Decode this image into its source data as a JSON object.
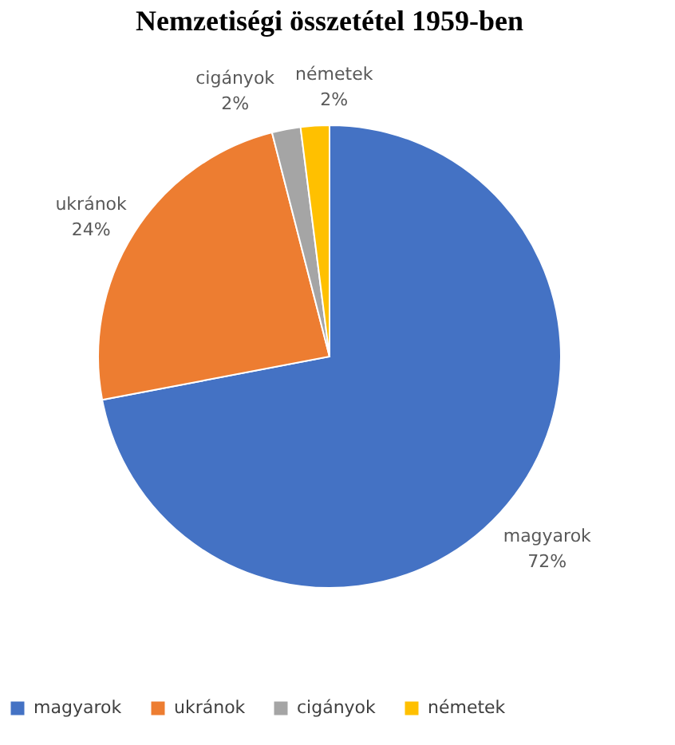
{
  "chart_data": {
    "type": "pie",
    "title": "Nemzetiségi összetétel 1959-ben",
    "categories": [
      "magyarok",
      "ukránok",
      "cigányok",
      "németek"
    ],
    "values": [
      72,
      24,
      2,
      2
    ],
    "value_labels": [
      "72%",
      "24%",
      "2%",
      "2%"
    ],
    "colors": [
      "#4472c4",
      "#ed7d31",
      "#a5a5a5",
      "#ffc000"
    ],
    "legend": "bottom"
  }
}
